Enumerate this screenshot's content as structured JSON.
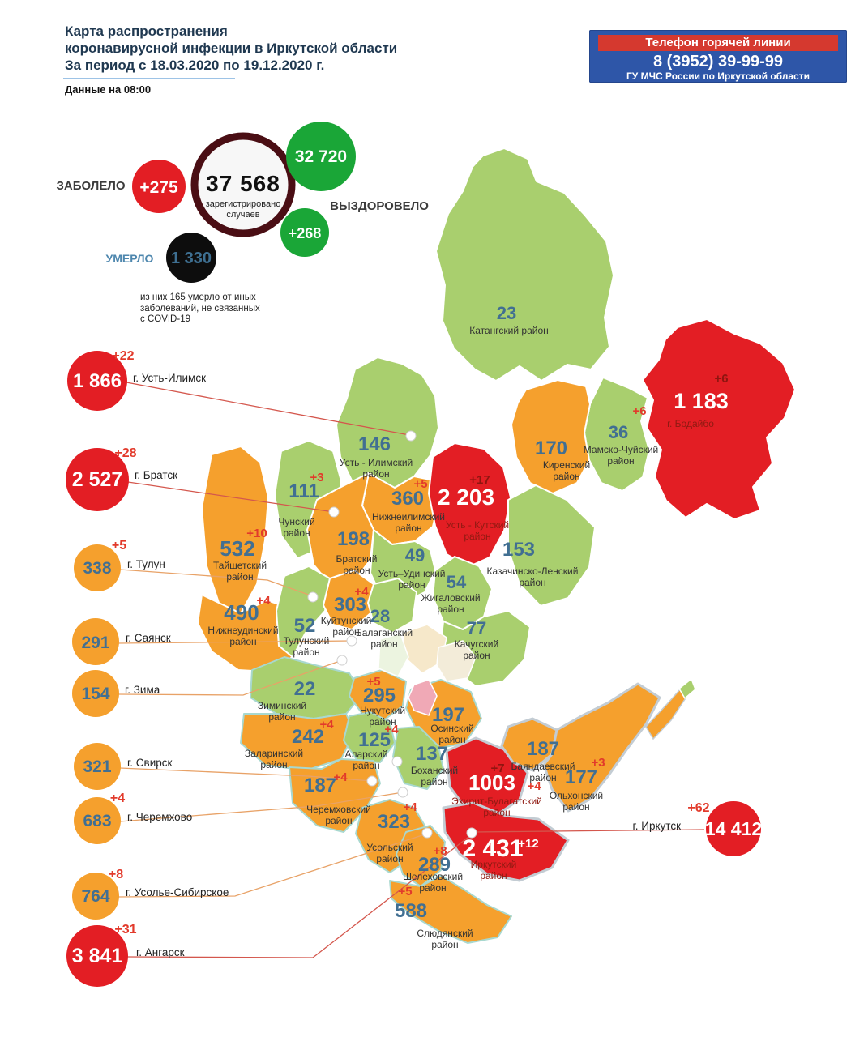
{
  "header": {
    "title_lines": [
      "Карта распространения",
      "коронавирусной инфекции в Иркутской области",
      "За период с 18.03.2020 по 19.12.2020 г."
    ],
    "subtitle": "Данные на 08:00"
  },
  "hotline": {
    "label": "Телефон горячей линии",
    "phone": "8 (3952) 39-99-99",
    "org": "ГУ МЧС России по Иркутской области"
  },
  "stats": {
    "sick_label": "ЗАБОЛЕЛО",
    "sick_inc": "+275",
    "registered_value": "37 568",
    "registered_caption_1": "зарегистрировано",
    "registered_caption_2": "случаев",
    "recovered_value": "32 720",
    "recovered_inc": "+268",
    "recovered_label": "ВЫЗДОРОВЕЛО",
    "died_label": "УМЕРЛО",
    "died_value": "1 330",
    "footnote_lines": [
      "из них 165 умерло от иных",
      "заболеваний, не связанных",
      "с COVID-19"
    ]
  },
  "cities": [
    {
      "id": "ust_ilimsk",
      "label": "г. Усть-Илимск",
      "value": "1 866",
      "inc": "+22",
      "color": "red"
    },
    {
      "id": "bratsk",
      "label": "г. Братск",
      "value": "2 527",
      "inc": "+28",
      "color": "red"
    },
    {
      "id": "tulun",
      "label": "г. Тулун",
      "value": "338",
      "inc": "+5",
      "color": "orange"
    },
    {
      "id": "sayansk",
      "label": "г. Саянск",
      "value": "291",
      "inc": "",
      "color": "orange"
    },
    {
      "id": "zima",
      "label": "г. Зима",
      "value": "154",
      "inc": "",
      "color": "orange"
    },
    {
      "id": "svirsk",
      "label": "г. Свирск",
      "value": "321",
      "inc": "",
      "color": "orange"
    },
    {
      "id": "cheremkhovo",
      "label": "г. Черемхово",
      "value": "683",
      "inc": "+4",
      "color": "orange"
    },
    {
      "id": "usolye",
      "label": "г. Усолье-Сибирское",
      "value": "764",
      "inc": "+8",
      "color": "orange"
    },
    {
      "id": "angarsk",
      "label": "г. Ангарск",
      "value": "3 841",
      "inc": "+31",
      "color": "red"
    },
    {
      "id": "irkutsk",
      "label": "г. Иркутск",
      "value": "14 412",
      "inc": "+62",
      "color": "red"
    }
  ],
  "regions": [
    {
      "id": "katangsky",
      "name": [
        "Катангский район"
      ],
      "value": "23",
      "inc": "",
      "fill": "green"
    },
    {
      "id": "bodaibo",
      "name": [
        "г. Бодайбо"
      ],
      "value": "1 183",
      "inc": "+6",
      "fill": "red"
    },
    {
      "id": "mamsko",
      "name": [
        "Мамско-Чуйский",
        "район"
      ],
      "value": "36",
      "inc": "+6",
      "fill": "green"
    },
    {
      "id": "kirensky",
      "name": [
        "Киренский",
        "район"
      ],
      "value": "170",
      "inc": "",
      "fill": "orange"
    },
    {
      "id": "ust_ilimsky",
      "name": [
        "Усть - Илимский",
        "район"
      ],
      "value": "146",
      "inc": "",
      "fill": "green"
    },
    {
      "id": "nizhneilimsky",
      "name": [
        "Нижнеилимский",
        "район"
      ],
      "value": "360",
      "inc": "+5",
      "fill": "orange"
    },
    {
      "id": "ust_kutsky",
      "name": [
        "Усть - Кутский",
        "район"
      ],
      "value": "2 203",
      "inc": "+17",
      "fill": "red"
    },
    {
      "id": "kazachinsky",
      "name": [
        "Казачинско-Ленский",
        "район"
      ],
      "value": "153",
      "inc": "",
      "fill": "green"
    },
    {
      "id": "chunsky",
      "name": [
        "Чунский",
        "район"
      ],
      "value": "111",
      "inc": "+3",
      "fill": "green"
    },
    {
      "id": "bratsky",
      "name": [
        "Братский",
        "район"
      ],
      "value": "198",
      "inc": "",
      "fill": "orange"
    },
    {
      "id": "ust_udinsky",
      "name": [
        "Усть–Удинский",
        "район"
      ],
      "value": "49",
      "inc": "",
      "fill": "green"
    },
    {
      "id": "zhigalovsky",
      "name": [
        "Жигаловский",
        "район"
      ],
      "value": "54",
      "inc": "",
      "fill": "green"
    },
    {
      "id": "kachugsky",
      "name": [
        "Качугский",
        "район"
      ],
      "value": "77",
      "inc": "",
      "fill": "green"
    },
    {
      "id": "taishetsky",
      "name": [
        "Тайшетский",
        "район"
      ],
      "value": "532",
      "inc": "+10",
      "fill": "orange"
    },
    {
      "id": "nizhneudinsky",
      "name": [
        "Нижнеудинский",
        "район"
      ],
      "value": "490",
      "inc": "+4",
      "fill": "orange"
    },
    {
      "id": "tulunsky",
      "name": [
        "Тулунский",
        "район"
      ],
      "value": "52",
      "inc": "",
      "fill": "green"
    },
    {
      "id": "kuitunsky",
      "name": [
        "Куйтунский",
        "район"
      ],
      "value": "303",
      "inc": "+4",
      "fill": "orange"
    },
    {
      "id": "balagansky",
      "name": [
        "Балаганский",
        "район"
      ],
      "value": "28",
      "inc": "",
      "fill": "green"
    },
    {
      "id": "ziminsky",
      "name": [
        "Зиминский",
        "район"
      ],
      "value": "22",
      "inc": "",
      "fill": "green"
    },
    {
      "id": "nukutsky",
      "name": [
        "Нукутский",
        "район"
      ],
      "value": "295",
      "inc": "+5",
      "fill": "orange"
    },
    {
      "id": "osinsky",
      "name": [
        "Осинский",
        "район"
      ],
      "value": "197",
      "inc": "",
      "fill": "orange"
    },
    {
      "id": "zalarinsky",
      "name": [
        "Заларинский",
        "район"
      ],
      "value": "242",
      "inc": "+4",
      "fill": "orange"
    },
    {
      "id": "alarsky",
      "name": [
        "Аларский",
        "район"
      ],
      "value": "125",
      "inc": "+4",
      "fill": "green"
    },
    {
      "id": "bokhansky",
      "name": [
        "Боханский",
        "район"
      ],
      "value": "137",
      "inc": "",
      "fill": "green"
    },
    {
      "id": "cheremkhovsky",
      "name": [
        "Черемховский",
        "район"
      ],
      "value": "187",
      "inc": "+4",
      "fill": "orange"
    },
    {
      "id": "ekhirit",
      "name": [
        "Эхирит-Булагатский",
        "район"
      ],
      "value": "1003",
      "inc": "+7",
      "fill": "red"
    },
    {
      "id": "bayandaevsky",
      "name": [
        "Баяндаевский",
        "район"
      ],
      "value": "187",
      "inc": "+4",
      "fill": "orange"
    },
    {
      "id": "olkhonsky",
      "name": [
        "Ольхонский",
        "район"
      ],
      "value": "177",
      "inc": "+3",
      "fill": "orange"
    },
    {
      "id": "usolsky",
      "name": [
        "Усольский",
        "район"
      ],
      "value": "323",
      "inc": "+4",
      "fill": "orange"
    },
    {
      "id": "irkutsky",
      "name": [
        "Иркутский",
        "район"
      ],
      "value": "2 431",
      "inc": "+12",
      "fill": "red",
      "inc_white": true
    },
    {
      "id": "shelekhovsky",
      "name": [
        "Шелеховский",
        "район"
      ],
      "value": "289",
      "inc": "+8",
      "fill": "orange"
    },
    {
      "id": "slyudyansky",
      "name": [
        "Слюдянский",
        "район"
      ],
      "value": "588",
      "inc": "+5",
      "fill": "orange"
    }
  ],
  "palette": {
    "red": "#e31e24",
    "orange": "#f5a02d",
    "green": "#a9cf6e",
    "dark_green_circle": "#1aa637",
    "black_circle": "#0d0d0d",
    "steel_blue": "#416f92",
    "inc_red": "#e23a2b",
    "inc_dark_red": "#8f1510",
    "label_dark": "#333333",
    "label_on_red": "#8f1a12",
    "ring_maroon": "#4a0e14",
    "hotline_blue": "#2e56a8",
    "hotline_red": "#d5392f",
    "title_navy": "#1f3850"
  }
}
